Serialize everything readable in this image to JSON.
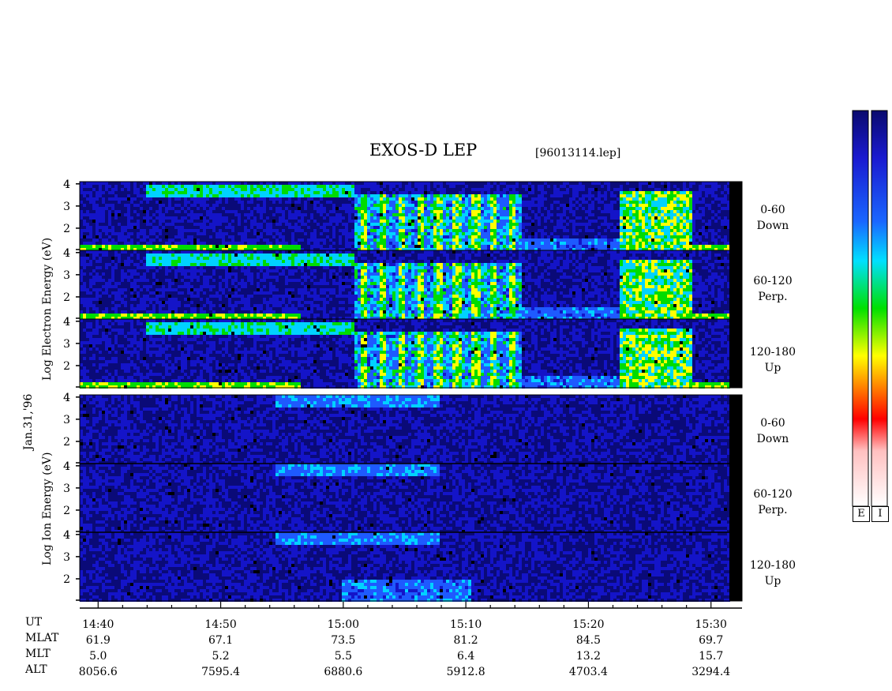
{
  "header": {
    "title": "EXOS-D LEP",
    "file": "[96013114.lep]"
  },
  "date_label": "Jan.31,'96",
  "electron": {
    "axis_words": [
      "Log",
      "Electron",
      "Energy",
      "(eV)"
    ]
  },
  "ion": {
    "axis_words": [
      "Log",
      "Ion",
      "Energy",
      "(eV)"
    ]
  },
  "panels": [
    {
      "group": "electron",
      "angle": "0-60",
      "dir": "Down"
    },
    {
      "group": "electron",
      "angle": "60-120",
      "dir": "Perp."
    },
    {
      "group": "electron",
      "angle": "120-180",
      "dir": "Up"
    },
    {
      "group": "ion",
      "angle": "0-60",
      "dir": "Down"
    },
    {
      "group": "ion",
      "angle": "60-120",
      "dir": "Perp."
    },
    {
      "group": "ion",
      "angle": "120-180",
      "dir": "Up"
    }
  ],
  "colorbar": {
    "labels": [
      "E",
      "I"
    ],
    "colors": [
      "#0a0a6e",
      "#1a1ad0",
      "#1a66ff",
      "#00e0ff",
      "#00e000",
      "#ffff00",
      "#ff8000",
      "#ff0000",
      "#ffc0c0",
      "#ffffff"
    ]
  },
  "ephemeris": {
    "row_labels": [
      "UT",
      "MLAT",
      "MLT",
      "ALT"
    ],
    "columns": [
      {
        "UT": "14:40",
        "MLAT": "61.9",
        "MLT": "5.0",
        "ALT": "8056.6"
      },
      {
        "UT": "14:50",
        "MLAT": "67.1",
        "MLT": "5.2",
        "ALT": "7595.4"
      },
      {
        "UT": "15:00",
        "MLAT": "73.5",
        "MLT": "5.5",
        "ALT": "6880.6"
      },
      {
        "UT": "15:10",
        "MLAT": "81.2",
        "MLT": "6.4",
        "ALT": "5912.8"
      },
      {
        "UT": "15:20",
        "MLAT": "84.5",
        "MLT": "13.2",
        "ALT": "4703.4"
      },
      {
        "UT": "15:30",
        "MLAT": "69.7",
        "MLT": "15.7",
        "ALT": "3294.4"
      }
    ]
  },
  "chart_data": {
    "type": "heatmap",
    "title": "EXOS-D LEP",
    "x_unit": "UT",
    "x_major_ticks": [
      "14:40",
      "14:50",
      "15:00",
      "15:10",
      "15:20",
      "15:30"
    ],
    "xlim": [
      "14:38.5",
      "15:31.5"
    ],
    "y_ticks": [
      2,
      3,
      4
    ],
    "ylim": [
      1,
      4.1
    ],
    "ylabel_electron": "Log Electron Energy (eV)",
    "ylabel_ion": "Log Ion Energy (eV)",
    "panel_count": 6
  }
}
